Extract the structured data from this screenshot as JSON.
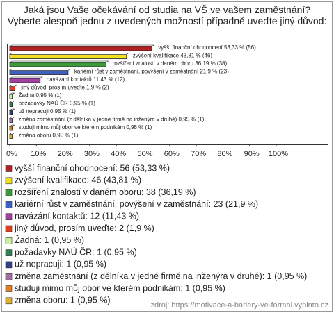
{
  "chart_data": {
    "type": "bar",
    "title": "Jaká jsou Vaše očekávání od studia na VŠ ve vašem zaměstnání? Vyberte alespoň jednu z uvedených možností případně uveďte jiný důvod:",
    "values": [
      53.33,
      43.81,
      36.19,
      21.9,
      11.43,
      1.9,
      0.95,
      0.95,
      0.95,
      0.95,
      0.95,
      0.95
    ],
    "value_labels": [
      "vyšší finanční ohodnocení 53,33 % (56)",
      "zvýšení kvalifikace 43,81 % (46)",
      "rozšíření znalostí v daném oboru 36,19 % (38)",
      "kariérní růst v zaměstnání, povýšení v zaměstnání 21,9 % (23)",
      "navázání kontaktů 11,43 % (12)",
      "jiný důvod, prosím uveďte 1,9 % (2)",
      "Žadná 0,95 % (1)",
      "požadavky NAÚ ČR 0,95 % (1)",
      "už nepracuji 0,95 % (1)",
      "změna zaměstnání (z dělníka v jedné firmě na inženýra v druhé) 0,95 % (1)",
      "studuji mimo můj obor ve kterém podnikám 0,95 % (1)",
      "změna oboru 0,95 % (1)"
    ],
    "legend": [
      "vyšší finanční ohodnocení: 56 (53,33 %)",
      "zvýšení kvalifikace: 46 (43,81 %)",
      "rozšíření znalostí v daném oboru: 38 (36,19 %)",
      "kariérní růst v zaměstnání, povýšení v zaměstnání: 23 (21,9 %)",
      "navázání kontaktů: 12 (11,43 %)",
      "jiný důvod, prosím uveďte: 2 (1,9 %)",
      "Žadná: 1 (0,95 %)",
      "požadavky NAÚ ČR: 1 (0,95 %)",
      "už nepracuji: 1 (0,95 %)",
      "změna zaměstnání (z dělníka v jedné firmě na inženýra v druhé): 1 (0,95 %)",
      "studuji mimo můj obor ve kterém podnikám: 1 (0,95 %)",
      "změna oboru: 1 (0,95 %)"
    ],
    "colors": [
      "#b22222",
      "#f0e020",
      "#3c9a3c",
      "#3f5fc0",
      "#a040a0",
      "#e04020",
      "#c8f0a0",
      "#2f7f4f",
      "#304080",
      "#a070a0",
      "#e08020",
      "#e0b030"
    ],
    "xlim": [
      0,
      100
    ],
    "xticks": [
      {
        "value": 0,
        "label": "0%"
      },
      {
        "value": 10,
        "label": "10%"
      },
      {
        "value": 20,
        "label": "20%"
      },
      {
        "value": 30,
        "label": "30%"
      },
      {
        "value": 40,
        "label": "40%"
      },
      {
        "value": 50,
        "label": "50%"
      },
      {
        "value": 60,
        "label": "60%"
      },
      {
        "value": 70,
        "label": "70%"
      },
      {
        "value": 80,
        "label": "80%"
      },
      {
        "value": 90,
        "label": "90%"
      },
      {
        "value": 100,
        "label": "100%"
      }
    ],
    "source": "zdroj: https://motivace-a-bariery-ve-formal.vyplnto.cz"
  }
}
